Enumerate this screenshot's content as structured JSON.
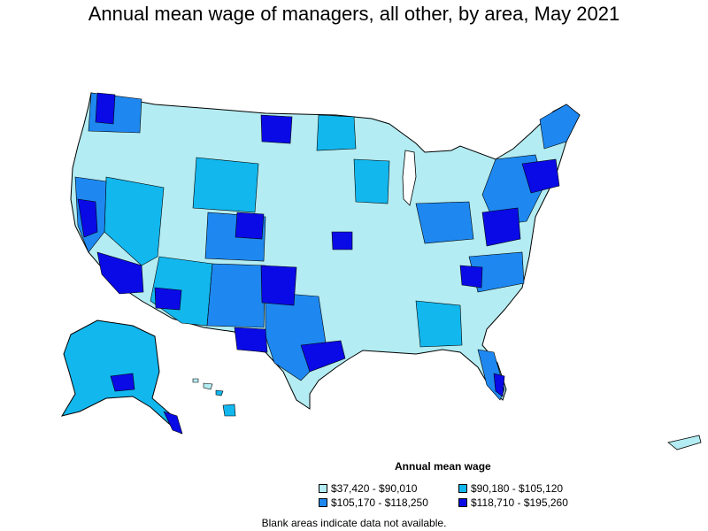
{
  "title": "Annual mean wage of managers, all other, by area, May 2021",
  "legend": {
    "title": "Annual mean wage",
    "items": [
      {
        "label": "$37,420 - $90,010",
        "color": "#b3ecf2"
      },
      {
        "label": "$90,180 - $105,120",
        "color": "#12b7ee"
      },
      {
        "label": "$105,170 - $118,250",
        "color": "#1e88f0"
      },
      {
        "label": "$118,710 - $195,260",
        "color": "#0a0ae6"
      }
    ]
  },
  "footnote": "Blank areas indicate data not available.",
  "colors": {
    "light": "#b3ecf2",
    "medium": "#12b7ee",
    "dark": "#1e88f0",
    "darkest": "#0a0ae6",
    "border": "#000000"
  }
}
